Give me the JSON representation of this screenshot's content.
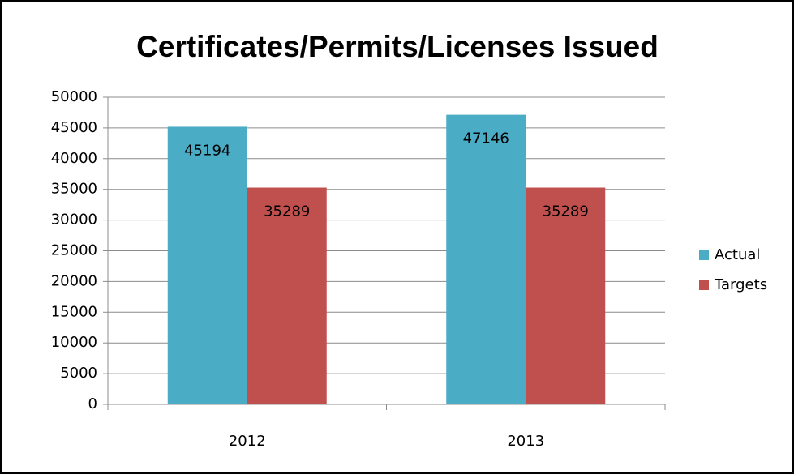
{
  "chart_data": {
    "type": "bar",
    "title": "Certificates/Permits/Licenses Issued",
    "categories": [
      "2012",
      "2013"
    ],
    "series": [
      {
        "name": "Actual",
        "color": "#4bacc6",
        "values": [
          45194,
          47146
        ]
      },
      {
        "name": "Targets",
        "color": "#c0504d",
        "values": [
          35289,
          35289
        ]
      }
    ],
    "ylim": [
      0,
      50000
    ],
    "yticks": [
      0,
      5000,
      10000,
      15000,
      20000,
      25000,
      30000,
      35000,
      40000,
      45000,
      50000
    ],
    "grid": true,
    "legend": "right"
  }
}
